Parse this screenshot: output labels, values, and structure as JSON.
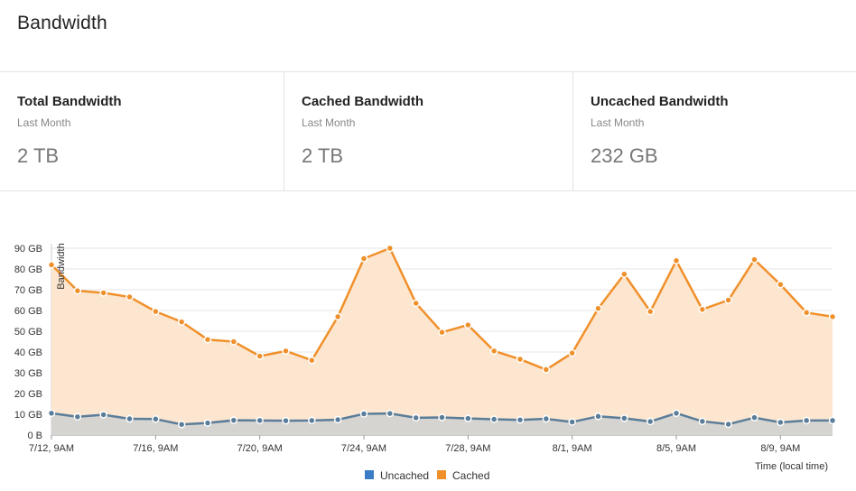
{
  "page": {
    "title": "Bandwidth"
  },
  "stats": [
    {
      "title": "Total Bandwidth",
      "period": "Last Month",
      "value": "2 TB"
    },
    {
      "title": "Cached Bandwidth",
      "period": "Last Month",
      "value": "2 TB"
    },
    {
      "title": "Uncached Bandwidth",
      "period": "Last Month",
      "value": "232 GB"
    }
  ],
  "colors": {
    "cached": "#f0902b",
    "cached_fill": "#fde6cf",
    "uncached": "#5b7d99",
    "uncached_fill": "#d5d4d0",
    "legend_uncached": "#3b7dc4",
    "legend_cached": "#f0902b"
  },
  "chart_data": {
    "type": "area",
    "ylabel": "Bandwidth",
    "xlabel": "Time (local time)",
    "y_ticks": [
      "0 B",
      "10 GB",
      "20 GB",
      "30 GB",
      "40 GB",
      "50 GB",
      "60 GB",
      "70 GB",
      "80 GB",
      "90 GB"
    ],
    "ylim": [
      0,
      90
    ],
    "x_ticks": [
      "7/12, 9AM",
      "7/16, 9AM",
      "7/20, 9AM",
      "7/24, 9AM",
      "7/28, 9AM",
      "8/1, 9AM",
      "8/5, 9AM",
      "8/9, 9AM"
    ],
    "x_tick_index": [
      0,
      4,
      8,
      12,
      16,
      20,
      24,
      28
    ],
    "x": [
      "7/12",
      "7/13",
      "7/14",
      "7/15",
      "7/16",
      "7/17",
      "7/18",
      "7/19",
      "7/20",
      "7/21",
      "7/22",
      "7/23",
      "7/24",
      "7/25",
      "7/26",
      "7/27",
      "7/28",
      "7/29",
      "7/30",
      "7/31",
      "8/1",
      "8/2",
      "8/3",
      "8/4",
      "8/5",
      "8/6",
      "8/7",
      "8/8",
      "8/9",
      "8/10",
      "8/11"
    ],
    "grid": true,
    "legend_position": "bottom-center",
    "series": [
      {
        "name": "Uncached",
        "values": [
          10.5,
          8.8,
          9.8,
          7.8,
          7.7,
          5.1,
          5.8,
          7.1,
          7.0,
          6.9,
          7.0,
          7.4,
          10.2,
          10.4,
          8.3,
          8.5,
          8.0,
          7.6,
          7.3,
          7.8,
          6.3,
          9.0,
          8.1,
          6.5,
          10.5,
          6.6,
          5.2,
          8.4,
          6.1,
          7.0,
          7.0
        ]
      },
      {
        "name": "Cached",
        "values": [
          82,
          69.5,
          68.5,
          66.5,
          59.5,
          54.5,
          46,
          45,
          38,
          40.5,
          36,
          57,
          85,
          90,
          63.5,
          49.5,
          53,
          40.5,
          36.5,
          31.5,
          39.5,
          61,
          77.5,
          59.5,
          84,
          60.5,
          65,
          84.5,
          72.5,
          59,
          57
        ]
      }
    ]
  }
}
